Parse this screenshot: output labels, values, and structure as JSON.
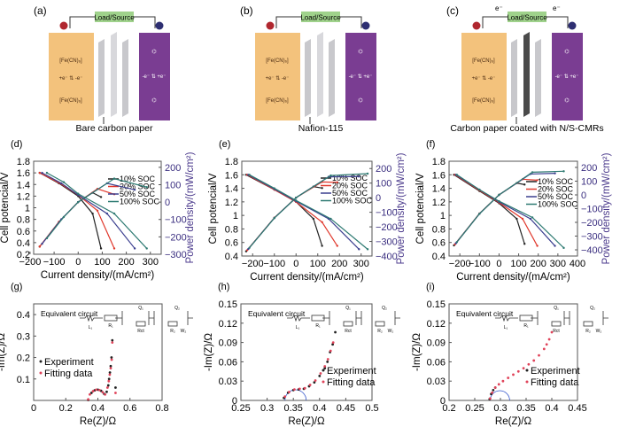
{
  "schematics": [
    {
      "label": "(a)",
      "load": "Load/Source",
      "caption": "Bare carbon paper",
      "electron": "",
      "membrane": "#c8c8cc",
      "anolyte_color": "#f3c27c",
      "catholyte_color": "#7a3d92"
    },
    {
      "label": "(b)",
      "load": "Load/Source",
      "caption": "Nafion-115",
      "electron": "",
      "membrane": "#c8c8cc",
      "anolyte_color": "#f3c27c",
      "catholyte_color": "#7a3d92"
    },
    {
      "label": "(c)",
      "load": "Load/Source",
      "caption": "Carbon paper coated with N/S-CMRs",
      "electron": "e⁻",
      "membrane": "#4a4a4a",
      "anolyte_color": "#f3c27c",
      "catholyte_color": "#7a3d92"
    }
  ],
  "chart_data": [
    {
      "panel": "(d)",
      "type": "line",
      "xlabel": "Current density/(mA/cm²)",
      "ylabel": "Cell potencial/V",
      "y2label": "Power density/(mW/cm²)",
      "xlim": [
        -185,
        345
      ],
      "ylim": [
        0.2,
        1.8
      ],
      "y2lim": [
        -300,
        235
      ],
      "xticks": [
        -200,
        -100,
        0,
        100,
        200,
        300
      ],
      "yticks": [
        0.2,
        0.4,
        0.6,
        0.8,
        1.0,
        1.2,
        1.4,
        1.6,
        1.8
      ],
      "y2ticks": [
        -300,
        -200,
        -100,
        0,
        100,
        200
      ],
      "legend_position": "center-right",
      "series": [
        {
          "name": "10% SOC",
          "color": "#222222",
          "current": [
            -160,
            -80,
            0,
            60,
            95
          ],
          "voltage": [
            1.6,
            1.42,
            1.2,
            0.9,
            0.3
          ],
          "power": [
            -256,
            -114,
            0,
            54,
            29
          ]
        },
        {
          "name": "20% SOC",
          "color": "#e0392d",
          "current": [
            -160,
            -80,
            0,
            80,
            150
          ],
          "voltage": [
            1.6,
            1.43,
            1.22,
            0.95,
            0.3
          ],
          "power": [
            -256,
            -114,
            0,
            76,
            45
          ]
        },
        {
          "name": "50% SOC",
          "color": "#3b3f8f",
          "current": [
            -150,
            -70,
            0,
            120,
            235
          ],
          "voltage": [
            1.6,
            1.42,
            1.22,
            0.9,
            0.3
          ],
          "power": [
            -240,
            -99,
            0,
            108,
            71
          ]
        },
        {
          "name": "100% SOC",
          "color": "#2e7a72",
          "current": [
            -130,
            -60,
            0,
            150,
            285
          ],
          "voltage": [
            1.6,
            1.44,
            1.24,
            0.9,
            0.3
          ],
          "power": [
            -208,
            -86,
            0,
            135,
            86
          ]
        }
      ]
    },
    {
      "panel": "(e)",
      "type": "line",
      "xlabel": "Current density/(mA/cm²)",
      "ylabel": "Cell potencial/V",
      "y2label": "Power density/(mW/cm²)",
      "xlim": [
        -250,
        350
      ],
      "ylim": [
        0.4,
        1.8
      ],
      "y2lim": [
        -400,
        250
      ],
      "xticks": [
        -200,
        -100,
        0,
        100,
        200,
        300
      ],
      "yticks": [
        0.4,
        0.6,
        0.8,
        1.0,
        1.2,
        1.4,
        1.6,
        1.8
      ],
      "y2ticks": [
        -400,
        -300,
        -200,
        -100,
        0,
        100,
        200
      ],
      "legend_position": "center-right",
      "series": [
        {
          "name": "10% SOC",
          "color": "#222222",
          "current": [
            -230,
            -100,
            0,
            80,
            120
          ],
          "voltage": [
            1.6,
            1.38,
            1.2,
            0.95,
            0.55
          ],
          "power": [
            -368,
            -138,
            0,
            76,
            66
          ]
        },
        {
          "name": "20% SOC",
          "color": "#e0392d",
          "current": [
            -225,
            -100,
            0,
            120,
            190
          ],
          "voltage": [
            1.6,
            1.38,
            1.2,
            0.9,
            0.55
          ],
          "power": [
            -360,
            -138,
            0,
            108,
            105
          ]
        },
        {
          "name": "50% SOC",
          "color": "#3b3f8f",
          "current": [
            -220,
            -100,
            0,
            150,
            290
          ],
          "voltage": [
            1.6,
            1.39,
            1.21,
            0.95,
            0.5
          ],
          "power": [
            -352,
            -139,
            0,
            143,
            145
          ]
        },
        {
          "name": "100% SOC",
          "color": "#2e7a72",
          "current": [
            -215,
            -100,
            0,
            160,
            330
          ],
          "voltage": [
            1.6,
            1.4,
            1.22,
            0.95,
            0.5
          ],
          "power": [
            -344,
            -140,
            0,
            152,
            165
          ]
        }
      ]
    },
    {
      "panel": "(f)",
      "type": "line",
      "xlabel": "Current density/(mA/cm²)",
      "ylabel": "Cell potencial/V",
      "y2label": "Power density/(mW/cm²)",
      "xlim": [
        -255,
        400
      ],
      "ylim": [
        0.4,
        1.8
      ],
      "y2lim": [
        -445,
        245
      ],
      "xticks": [
        -200,
        -100,
        0,
        100,
        200,
        300,
        400
      ],
      "yticks": [
        0.4,
        0.6,
        0.8,
        1.0,
        1.2,
        1.4,
        1.6,
        1.8
      ],
      "y2ticks": [
        -400,
        -300,
        -200,
        -100,
        0,
        100,
        200
      ],
      "legend_position": "center-right",
      "series": [
        {
          "name": "10% SOC",
          "color": "#222222",
          "current": [
            -230,
            -100,
            0,
            90,
            130
          ],
          "voltage": [
            1.6,
            1.36,
            1.18,
            0.95,
            0.58
          ],
          "power": [
            -368,
            -136,
            0,
            86,
            75
          ]
        },
        {
          "name": "20% SOC",
          "color": "#e0392d",
          "current": [
            -225,
            -100,
            0,
            120,
            195
          ],
          "voltage": [
            1.6,
            1.37,
            1.19,
            0.95,
            0.55
          ],
          "power": [
            -360,
            -137,
            0,
            114,
            107
          ]
        },
        {
          "name": "50% SOC",
          "color": "#3b3f8f",
          "current": [
            -220,
            -100,
            0,
            160,
            285
          ],
          "voltage": [
            1.6,
            1.38,
            1.2,
            0.95,
            0.55
          ],
          "power": [
            -352,
            -138,
            0,
            152,
            157
          ]
        },
        {
          "name": "100% SOC",
          "color": "#2e7a72",
          "current": [
            -215,
            -100,
            0,
            170,
            330
          ],
          "voltage": [
            1.6,
            1.38,
            1.21,
            0.97,
            0.52
          ],
          "power": [
            -344,
            -138,
            0,
            165,
            172
          ]
        }
      ]
    },
    {
      "panel": "(g)",
      "type": "scatter",
      "xlabel": "Re(Z)/Ω",
      "ylabel": "-Im(Z)/Ω",
      "inset": "Equivalent circuit",
      "circuit": [
        "L₁",
        "R₁",
        "Q₁",
        "Rct",
        "Q₂",
        "R₂",
        "W₂"
      ],
      "xlim": [
        0,
        0.8
      ],
      "ylim": [
        0,
        0.45
      ],
      "xticks": [
        0,
        0.2,
        0.4,
        0.6,
        0.8
      ],
      "yticks": [
        0.1,
        0.2,
        0.3,
        0.4
      ],
      "legend_position": "bottom-left",
      "series": [
        {
          "name": "Experiment",
          "color": "#222222",
          "x": [
            0.34,
            0.36,
            0.38,
            0.4,
            0.42,
            0.44,
            0.455,
            0.465,
            0.47,
            0.475,
            0.48,
            0.485,
            0.49,
            0.51
          ],
          "y": [
            0.002,
            0.035,
            0.047,
            0.05,
            0.045,
            0.03,
            0.04,
            0.07,
            0.1,
            0.13,
            0.16,
            0.2,
            0.28,
            0.06
          ]
        },
        {
          "name": "Fitting data",
          "color": "#e0435a",
          "x": [
            0.34,
            0.35,
            0.37,
            0.39,
            0.41,
            0.43,
            0.445,
            0.46,
            0.468,
            0.474,
            0.48,
            0.486,
            0.49,
            0.51
          ],
          "y": [
            0.005,
            0.028,
            0.043,
            0.05,
            0.048,
            0.038,
            0.028,
            0.06,
            0.09,
            0.12,
            0.15,
            0.19,
            0.27,
            0.035
          ]
        }
      ]
    },
    {
      "panel": "(h)",
      "type": "scatter",
      "xlabel": "Re(Z)/Ω",
      "ylabel": "-Im(Z)/Ω",
      "inset": "Equivalent circuit",
      "circuit": [
        "L₁",
        "R₁",
        "Q₁",
        "Rct",
        "Q₂",
        "R₂",
        "W₂"
      ],
      "xlim": [
        0.25,
        0.5
      ],
      "ylim": [
        0,
        0.15
      ],
      "xticks": [
        0.25,
        0.3,
        0.35,
        0.4,
        0.45,
        0.5
      ],
      "yticks": [
        0,
        0.03,
        0.06,
        0.09,
        0.12,
        0.15
      ],
      "legend_position": "bottom-right",
      "series": [
        {
          "name": "Experiment",
          "color": "#222222",
          "x": [
            0.332,
            0.34,
            0.35,
            0.36,
            0.37,
            0.38,
            0.39,
            0.4,
            0.41,
            0.415,
            0.42,
            0.425,
            0.43
          ],
          "y": [
            0.004,
            0.012,
            0.016,
            0.017,
            0.018,
            0.022,
            0.028,
            0.038,
            0.05,
            0.06,
            0.075,
            0.087,
            0.106
          ]
        },
        {
          "name": "Fitting data",
          "color": "#e0435a",
          "x": [
            0.334,
            0.342,
            0.352,
            0.362,
            0.372,
            0.382,
            0.392,
            0.402,
            0.41,
            0.416,
            0.421,
            0.426
          ],
          "y": [
            0.006,
            0.013,
            0.017,
            0.018,
            0.019,
            0.024,
            0.031,
            0.042,
            0.053,
            0.064,
            0.077,
            0.09
          ]
        }
      ]
    },
    {
      "panel": "(i)",
      "type": "scatter",
      "xlabel": "Re(Z)/Ω",
      "ylabel": "-Im(Z)/Ω",
      "inset": "Equivalent circuit",
      "circuit": [
        "L₁",
        "R₁",
        "Q₁",
        "Rct",
        "Q₂",
        "R₂",
        "W₂"
      ],
      "xlim": [
        0.2,
        0.45
      ],
      "ylim": [
        0,
        0.15
      ],
      "xticks": [
        0.2,
        0.25,
        0.3,
        0.35,
        0.4,
        0.45
      ],
      "yticks": [
        0,
        0.03,
        0.06,
        0.09,
        0.12,
        0.15
      ],
      "legend_position": "bottom-right",
      "series": [
        {
          "name": "Experiment",
          "color": "#222222",
          "x": [
            0.279,
            0.282,
            0.286,
            0.29
          ],
          "y": [
            0.002,
            0.01,
            0.016,
            0.02
          ]
        },
        {
          "name": "Fitting data",
          "color": "#e0435a",
          "x": [
            0.28,
            0.284,
            0.29,
            0.297,
            0.305,
            0.315,
            0.325,
            0.335,
            0.345,
            0.355,
            0.365,
            0.375,
            0.385,
            0.39,
            0.395,
            0.4
          ],
          "y": [
            0.003,
            0.012,
            0.02,
            0.025,
            0.03,
            0.035,
            0.04,
            0.045,
            0.05,
            0.056,
            0.062,
            0.07,
            0.08,
            0.087,
            0.095,
            0.106
          ]
        }
      ]
    }
  ]
}
